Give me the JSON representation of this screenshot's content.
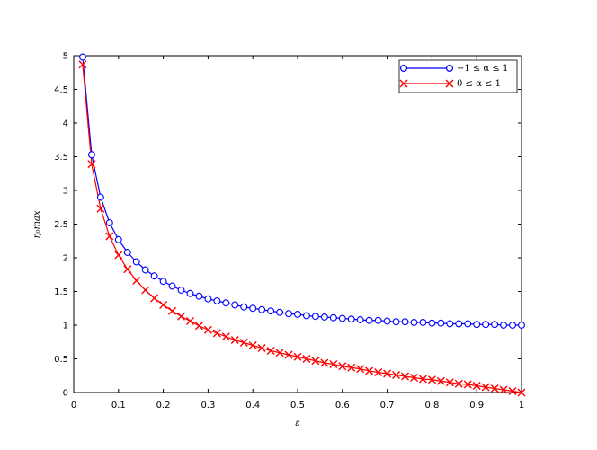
{
  "chart_data": {
    "type": "line",
    "title": "",
    "xlabel": "ε",
    "ylabel": "η₀max",
    "xlim": [
      0,
      1
    ],
    "ylim": [
      0,
      5
    ],
    "xticks": [
      0,
      0.1,
      0.2,
      0.3,
      0.4,
      0.5,
      0.6,
      0.7,
      0.8,
      0.9,
      1
    ],
    "xtick_labels": [
      "0",
      "0.1",
      "0.2",
      "0.3",
      "0.4",
      "0.5",
      "0.6",
      "0.7",
      "0.8",
      "0.9",
      "1"
    ],
    "yticks": [
      0,
      0.5,
      1,
      1.5,
      2,
      2.5,
      3,
      3.5,
      4,
      4.5,
      5
    ],
    "ytick_labels": [
      "0",
      "0.5",
      "1",
      "1.5",
      "2",
      "2.5",
      "3",
      "3.5",
      "4",
      "4.5",
      "5"
    ],
    "grid": false,
    "legend_position": "top-right",
    "series": [
      {
        "name": "−1 ≤ α ≤ 1",
        "color": "#0000ff",
        "marker": "circle",
        "x": [
          0.02,
          0.04,
          0.06,
          0.08,
          0.1,
          0.12,
          0.14,
          0.16,
          0.18,
          0.2,
          0.22,
          0.24,
          0.26,
          0.28,
          0.3,
          0.32,
          0.34,
          0.36,
          0.38,
          0.4,
          0.42,
          0.44,
          0.46,
          0.48,
          0.5,
          0.52,
          0.54,
          0.56,
          0.58,
          0.6,
          0.62,
          0.64,
          0.66,
          0.68,
          0.7,
          0.72,
          0.74,
          0.76,
          0.78,
          0.8,
          0.82,
          0.84,
          0.86,
          0.88,
          0.9,
          0.92,
          0.94,
          0.96,
          0.98,
          1.0
        ],
        "y": [
          4.98,
          3.53,
          2.9,
          2.52,
          2.27,
          2.08,
          1.94,
          1.82,
          1.73,
          1.65,
          1.58,
          1.52,
          1.47,
          1.43,
          1.39,
          1.36,
          1.33,
          1.3,
          1.27,
          1.25,
          1.23,
          1.21,
          1.19,
          1.17,
          1.16,
          1.14,
          1.13,
          1.12,
          1.11,
          1.1,
          1.09,
          1.08,
          1.07,
          1.07,
          1.06,
          1.05,
          1.05,
          1.04,
          1.04,
          1.03,
          1.03,
          1.02,
          1.02,
          1.02,
          1.01,
          1.01,
          1.01,
          1.0,
          1.0,
          1.0
        ]
      },
      {
        "name": "0 ≤ α ≤ 1",
        "color": "#ff0000",
        "marker": "x",
        "x": [
          0.02,
          0.04,
          0.06,
          0.08,
          0.1,
          0.12,
          0.14,
          0.16,
          0.18,
          0.2,
          0.22,
          0.24,
          0.26,
          0.28,
          0.3,
          0.32,
          0.34,
          0.36,
          0.38,
          0.4,
          0.42,
          0.44,
          0.46,
          0.48,
          0.5,
          0.52,
          0.54,
          0.56,
          0.58,
          0.6,
          0.62,
          0.64,
          0.66,
          0.68,
          0.7,
          0.72,
          0.74,
          0.76,
          0.78,
          0.8,
          0.82,
          0.84,
          0.86,
          0.88,
          0.9,
          0.92,
          0.94,
          0.96,
          0.98,
          1.0
        ],
        "y": [
          4.87,
          3.39,
          2.73,
          2.32,
          2.04,
          1.83,
          1.66,
          1.52,
          1.4,
          1.3,
          1.21,
          1.13,
          1.06,
          0.99,
          0.93,
          0.88,
          0.83,
          0.78,
          0.74,
          0.7,
          0.66,
          0.62,
          0.59,
          0.56,
          0.53,
          0.5,
          0.47,
          0.44,
          0.42,
          0.39,
          0.37,
          0.35,
          0.32,
          0.3,
          0.28,
          0.26,
          0.24,
          0.22,
          0.2,
          0.19,
          0.17,
          0.15,
          0.13,
          0.12,
          0.1,
          0.08,
          0.06,
          0.04,
          0.02,
          0.0
        ]
      }
    ]
  }
}
